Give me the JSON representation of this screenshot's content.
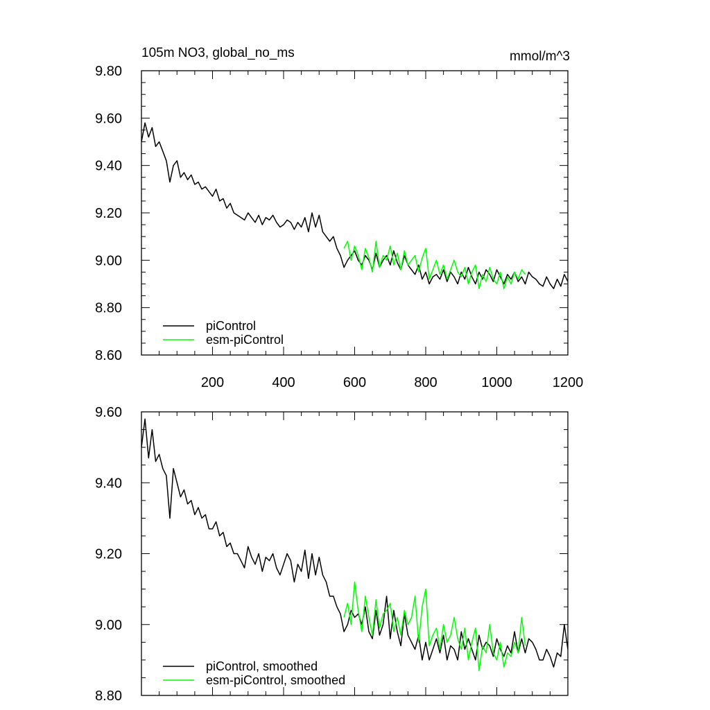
{
  "title": "105m NO3, global_no_ms",
  "units": "mmol/m^3",
  "chart_data": [
    {
      "type": "line",
      "title": "105m NO3, global_no_ms",
      "units": "mmol/m^3",
      "xlim": [
        0,
        1200
      ],
      "ylim": [
        8.6,
        9.8
      ],
      "xticks": [
        200,
        400,
        600,
        800,
        1000,
        1200
      ],
      "xtick_labels": [
        "200",
        "400",
        "600",
        "800",
        "1000",
        "1200"
      ],
      "yticks": [
        8.6,
        8.8,
        9.0,
        9.2,
        9.4,
        9.6,
        9.8
      ],
      "ytick_labels": [
        "8.60",
        "8.80",
        "9.00",
        "9.20",
        "9.40",
        "9.60",
        "9.80"
      ],
      "legend": "bottom-left",
      "series": [
        {
          "name": "piControl",
          "color": "#000000",
          "x": [
            0,
            10,
            20,
            30,
            40,
            50,
            60,
            70,
            80,
            90,
            100,
            110,
            120,
            130,
            140,
            150,
            160,
            170,
            180,
            190,
            200,
            210,
            220,
            230,
            240,
            250,
            260,
            270,
            280,
            290,
            300,
            310,
            320,
            330,
            340,
            350,
            360,
            370,
            380,
            390,
            400,
            410,
            420,
            430,
            440,
            450,
            460,
            470,
            480,
            490,
            500,
            510,
            520,
            530,
            540,
            550,
            560,
            570,
            580,
            590,
            600,
            610,
            620,
            630,
            640,
            650,
            660,
            670,
            680,
            690,
            700,
            710,
            720,
            730,
            740,
            750,
            760,
            770,
            780,
            790,
            800,
            810,
            820,
            830,
            840,
            850,
            860,
            870,
            880,
            890,
            900,
            910,
            920,
            930,
            940,
            950,
            960,
            970,
            980,
            990,
            1000,
            1010,
            1020,
            1030,
            1040,
            1050,
            1060,
            1070,
            1080,
            1090,
            1100,
            1110,
            1120,
            1130,
            1140,
            1150,
            1160,
            1170,
            1180,
            1190,
            1200
          ],
          "values": [
            9.5,
            9.58,
            9.52,
            9.56,
            9.48,
            9.5,
            9.46,
            9.42,
            9.33,
            9.4,
            9.42,
            9.35,
            9.37,
            9.34,
            9.36,
            9.32,
            9.33,
            9.3,
            9.31,
            9.29,
            9.27,
            9.3,
            9.25,
            9.26,
            9.22,
            9.24,
            9.2,
            9.19,
            9.18,
            9.17,
            9.2,
            9.18,
            9.16,
            9.19,
            9.15,
            9.18,
            9.17,
            9.19,
            9.16,
            9.14,
            9.15,
            9.17,
            9.16,
            9.13,
            9.16,
            9.14,
            9.18,
            9.12,
            9.2,
            9.14,
            9.19,
            9.12,
            9.1,
            9.08,
            9.1,
            9.05,
            9.02,
            8.97,
            9.0,
            9.02,
            9.04,
            9.0,
            8.98,
            9.02,
            9.0,
            8.96,
            9.03,
            8.97,
            9.0,
            9.02,
            8.98,
            9.04,
            8.99,
            8.96,
            9.02,
            8.98,
            8.96,
            8.94,
            8.98,
            8.92,
            8.95,
            8.9,
            8.93,
            8.94,
            8.92,
            8.96,
            8.91,
            8.95,
            8.93,
            8.9,
            8.95,
            8.92,
            8.97,
            8.93,
            8.9,
            8.95,
            8.92,
            8.96,
            8.94,
            8.91,
            8.96,
            8.93,
            8.9,
            8.94,
            8.92,
            8.95,
            8.91,
            8.93,
            8.9,
            8.95,
            8.93,
            8.92,
            8.9,
            8.89,
            8.93,
            8.9,
            8.88,
            8.92,
            8.89,
            8.94,
            8.91
          ]
        },
        {
          "name": "esm-piControl",
          "color": "#00ff00",
          "x": [
            570,
            580,
            590,
            600,
            610,
            620,
            630,
            640,
            650,
            660,
            670,
            680,
            690,
            700,
            710,
            720,
            730,
            740,
            750,
            760,
            770,
            780,
            790,
            800,
            810,
            820,
            830,
            840,
            850,
            860,
            870,
            880,
            890,
            900,
            910,
            920,
            930,
            940,
            950,
            960,
            970,
            980,
            990,
            1000,
            1010,
            1020,
            1030,
            1040,
            1050,
            1060,
            1070,
            1080
          ],
          "values": [
            9.05,
            9.08,
            9.0,
            9.06,
            9.02,
            8.96,
            9.05,
            9.01,
            8.95,
            9.08,
            8.97,
            9.02,
            9.0,
            9.06,
            8.98,
            9.03,
            8.96,
            9.04,
            8.98,
            9.0,
            9.02,
            8.95,
            9.01,
            9.05,
            8.92,
            8.96,
            9.0,
            8.94,
            8.98,
            8.92,
            8.96,
            9.0,
            8.95,
            8.93,
            8.97,
            8.9,
            8.95,
            8.98,
            8.88,
            8.94,
            8.91,
            8.97,
            8.92,
            8.9,
            8.95,
            8.88,
            8.93,
            8.9,
            8.95,
            8.92,
            8.96,
            8.94
          ]
        }
      ]
    },
    {
      "type": "line",
      "xlim": [
        0,
        1200
      ],
      "ylim": [
        8.8,
        9.6
      ],
      "xticks": [
        200,
        400,
        600,
        800,
        1000,
        1200
      ],
      "yticks": [
        8.8,
        9.0,
        9.2,
        9.4,
        9.6
      ],
      "ytick_labels": [
        "8.80",
        "9.00",
        "9.20",
        "9.40",
        "9.60"
      ],
      "legend": "bottom-left",
      "series": [
        {
          "name": "piControl, smoothed",
          "color": "#000000",
          "x": [
            0,
            10,
            20,
            30,
            40,
            50,
            60,
            70,
            80,
            90,
            100,
            110,
            120,
            130,
            140,
            150,
            160,
            170,
            180,
            190,
            200,
            210,
            220,
            230,
            240,
            250,
            260,
            270,
            280,
            290,
            300,
            310,
            320,
            330,
            340,
            350,
            360,
            370,
            380,
            390,
            400,
            410,
            420,
            430,
            440,
            450,
            460,
            470,
            480,
            490,
            500,
            510,
            520,
            530,
            540,
            550,
            560,
            570,
            580,
            590,
            600,
            610,
            620,
            630,
            640,
            650,
            660,
            670,
            680,
            690,
            700,
            710,
            720,
            730,
            740,
            750,
            760,
            770,
            780,
            790,
            800,
            810,
            820,
            830,
            840,
            850,
            860,
            870,
            880,
            890,
            900,
            910,
            920,
            930,
            940,
            950,
            960,
            970,
            980,
            990,
            1000,
            1010,
            1020,
            1030,
            1040,
            1050,
            1060,
            1070,
            1080,
            1090,
            1100,
            1110,
            1120,
            1130,
            1140,
            1150,
            1160,
            1170,
            1180,
            1190,
            1200
          ],
          "values": [
            9.5,
            9.58,
            9.47,
            9.55,
            9.46,
            9.48,
            9.44,
            9.42,
            9.3,
            9.44,
            9.4,
            9.36,
            9.38,
            9.34,
            9.35,
            9.31,
            9.33,
            9.3,
            9.31,
            9.27,
            9.27,
            9.29,
            9.25,
            9.26,
            9.22,
            9.23,
            9.2,
            9.2,
            9.18,
            9.16,
            9.22,
            9.19,
            9.17,
            9.2,
            9.15,
            9.19,
            9.18,
            9.2,
            9.16,
            9.14,
            9.17,
            9.2,
            9.18,
            9.12,
            9.17,
            9.15,
            9.21,
            9.13,
            9.2,
            9.14,
            9.19,
            9.14,
            9.12,
            9.08,
            9.08,
            9.05,
            9.03,
            8.98,
            9.0,
            9.04,
            9.02,
            9.03,
            9.0,
            9.05,
            8.98,
            8.96,
            9.04,
            8.97,
            9.0,
            9.08,
            8.96,
            9.04,
            8.98,
            8.94,
            9.03,
            8.97,
            8.95,
            8.93,
            8.97,
            8.9,
            8.95,
            8.9,
            8.93,
            8.96,
            8.92,
            8.97,
            8.9,
            8.94,
            8.93,
            8.9,
            8.98,
            8.93,
            8.96,
            8.93,
            8.9,
            8.97,
            8.93,
            8.95,
            8.94,
            8.91,
            8.96,
            8.93,
            8.91,
            8.94,
            8.92,
            8.98,
            8.92,
            8.96,
            8.92,
            8.96,
            8.95,
            8.93,
            8.9,
            8.9,
            8.93,
            8.91,
            8.88,
            8.92,
            8.91,
            9.0,
            8.93
          ]
        },
        {
          "name": "esm-piControl, smoothed",
          "color": "#00ff00",
          "x": [
            570,
            580,
            590,
            600,
            610,
            620,
            630,
            640,
            650,
            660,
            670,
            680,
            690,
            700,
            710,
            720,
            730,
            740,
            750,
            760,
            770,
            780,
            790,
            800,
            810,
            820,
            830,
            840,
            850,
            860,
            870,
            880,
            890,
            900,
            910,
            920,
            930,
            940,
            950,
            960,
            970,
            980,
            990,
            1000,
            1010,
            1020,
            1030,
            1040,
            1050,
            1060,
            1070,
            1080
          ],
          "values": [
            9.02,
            9.06,
            9.0,
            9.12,
            9.04,
            8.98,
            9.08,
            9.02,
            8.97,
            9.07,
            8.99,
            9.03,
            9.04,
            9.06,
            8.98,
            9.02,
            8.97,
            9.04,
            9.0,
            9.02,
            9.08,
            8.95,
            9.05,
            9.1,
            8.94,
            8.97,
            8.99,
            8.93,
            9.0,
            8.95,
            8.97,
            9.02,
            8.96,
            8.93,
            8.99,
            8.9,
            8.95,
            8.99,
            8.87,
            8.94,
            8.92,
            9.0,
            8.92,
            8.9,
            8.95,
            8.88,
            8.92,
            8.91,
            8.95,
            8.92,
            9.02,
            8.94
          ]
        }
      ]
    }
  ]
}
